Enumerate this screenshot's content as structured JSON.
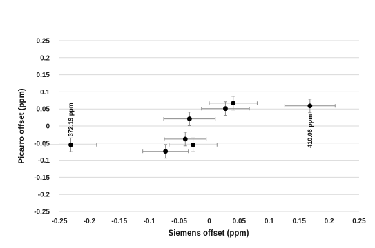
{
  "chart_data": {
    "type": "scatter",
    "title": "",
    "xlabel": "Siemens offset (ppm)",
    "ylabel": "Picarro offset (ppm)",
    "xlim": [
      -0.25,
      0.25
    ],
    "ylim": [
      -0.25,
      0.25
    ],
    "x_ticks": [
      -0.25,
      -0.2,
      -0.15,
      -0.1,
      -0.05,
      0,
      0.05,
      0.1,
      0.15,
      0.2,
      0.25
    ],
    "y_ticks": [
      0.25,
      0.2,
      0.15,
      0.1,
      0.05,
      0,
      -0.05,
      -0.1,
      -0.15,
      -0.2,
      -0.25
    ],
    "x_tick_labels": [
      "-0.25",
      "-0.2",
      "-0.15",
      "-0.1",
      "-0.05",
      "0",
      "0.05",
      "0.1",
      "0.15",
      "0.2",
      "0.25"
    ],
    "y_tick_labels": [
      "0.25",
      "0.2",
      "0.15",
      "0.1",
      "0.05",
      "0",
      "-0.05",
      "-0.1",
      "-0.15",
      "-0.2",
      "-0.25"
    ],
    "grid": "horizontal",
    "legend": "none",
    "point_color": "#000000",
    "errorbar_color": "#8c8c8c",
    "gridline_color": "#d9d9d9",
    "points": [
      {
        "x": -0.231,
        "y": -0.055,
        "x_err": 0.043,
        "y_err": 0.02
      },
      {
        "x": -0.073,
        "y": -0.074,
        "x_err": 0.038,
        "y_err": 0.02
      },
      {
        "x": -0.04,
        "y": -0.038,
        "x_err": 0.035,
        "y_err": 0.02
      },
      {
        "x": -0.027,
        "y": -0.055,
        "x_err": 0.04,
        "y_err": 0.02
      },
      {
        "x": -0.033,
        "y": 0.021,
        "x_err": 0.043,
        "y_err": 0.02
      },
      {
        "x": 0.027,
        "y": 0.051,
        "x_err": 0.04,
        "y_err": 0.02
      },
      {
        "x": 0.04,
        "y": 0.067,
        "x_err": 0.04,
        "y_err": 0.02
      },
      {
        "x": 0.168,
        "y": 0.059,
        "x_err": 0.042,
        "y_err": 0.02
      }
    ],
    "annotations": [
      {
        "text": "372.19 ppm",
        "x": -0.231,
        "y": -0.055,
        "position": "above"
      },
      {
        "text": "410.06 ppm",
        "x": 0.168,
        "y": 0.059,
        "position": "below"
      }
    ]
  }
}
